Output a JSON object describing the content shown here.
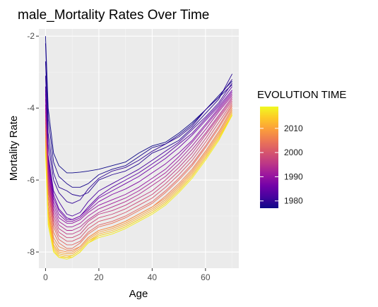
{
  "chart_data": {
    "type": "line",
    "title": "male_Mortality Rates Over Time",
    "xlabel": "Age",
    "ylabel": "Mortality Rate",
    "xlim": [
      -2.5,
      72.5
    ],
    "ylim": [
      -8.45,
      -1.8
    ],
    "x_ticks": [
      0,
      20,
      40,
      60
    ],
    "y_ticks": [
      -2,
      -4,
      -6,
      -8
    ],
    "grid": true,
    "legend": {
      "title": "EVOLUTION TIME",
      "position": "right",
      "type": "colorbar",
      "range": [
        1977,
        2019
      ],
      "ticks": [
        1980,
        1990,
        2000,
        2010
      ],
      "colors": [
        "#0d0887",
        "#46039f",
        "#7201a8",
        "#9c179e",
        "#bd3786",
        "#d8576b",
        "#ed7953",
        "#fb9f3a",
        "#fdca26",
        "#f0f921"
      ]
    },
    "panel_background": "#ebebeb",
    "x": [
      0,
      1,
      3,
      5,
      8,
      10,
      13,
      16,
      20,
      25,
      30,
      35,
      40,
      45,
      50,
      55,
      60,
      65,
      70
    ],
    "series": [
      {
        "year": 1977,
        "values": [
          -2.0,
          -4.0,
          -5.25,
          -5.6,
          -5.8,
          -5.8,
          -5.78,
          -5.75,
          -5.7,
          -5.6,
          -5.5,
          -5.25,
          -5.05,
          -4.95,
          -4.7,
          -4.4,
          -4.05,
          -3.65,
          -3.25
        ]
      },
      {
        "year": 1978,
        "values": [
          -2.2,
          -4.3,
          -5.5,
          -5.9,
          -6.1,
          -6.2,
          -6.2,
          -6.1,
          -5.85,
          -5.7,
          -5.6,
          -5.35,
          -5.1,
          -5.0,
          -4.75,
          -4.45,
          -4.05,
          -3.7,
          -3.35
        ]
      },
      {
        "year": 1979,
        "values": [
          -2.7,
          -4.7,
          -5.8,
          -6.2,
          -6.3,
          -6.4,
          -6.45,
          -6.35,
          -6.0,
          -5.85,
          -5.75,
          -5.55,
          -5.25,
          -5.1,
          -4.9,
          -4.55,
          -4.15,
          -3.75,
          -3.05
        ]
      },
      {
        "year": 1980,
        "values": [
          -3.1,
          -5.0,
          -6.0,
          -6.35,
          -6.6,
          -6.65,
          -6.55,
          -6.25,
          -5.95,
          -5.75,
          -5.65,
          -5.45,
          -5.2,
          -5.0,
          -4.8,
          -4.5,
          -4.05,
          -3.7,
          -3.2
        ]
      },
      {
        "year": 1982,
        "values": [
          -3.4,
          -5.3,
          -6.3,
          -6.6,
          -6.95,
          -7.0,
          -6.9,
          -6.6,
          -6.3,
          -6.1,
          -5.9,
          -5.7,
          -5.45,
          -5.2,
          -4.95,
          -4.6,
          -4.25,
          -3.85,
          -3.3
        ]
      },
      {
        "year": 1984,
        "values": [
          -3.5,
          -5.4,
          -6.4,
          -6.8,
          -7.05,
          -7.1,
          -7.0,
          -6.75,
          -6.45,
          -6.2,
          -6.0,
          -5.8,
          -5.55,
          -5.3,
          -5.0,
          -4.7,
          -4.3,
          -3.9,
          -3.4
        ]
      },
      {
        "year": 1986,
        "values": [
          -3.6,
          -5.5,
          -6.5,
          -6.85,
          -7.1,
          -7.1,
          -7.0,
          -6.8,
          -6.5,
          -6.3,
          -6.1,
          -5.9,
          -5.65,
          -5.4,
          -5.1,
          -4.75,
          -4.35,
          -3.95,
          -3.5
        ]
      },
      {
        "year": 1988,
        "values": [
          -3.75,
          -5.6,
          -6.6,
          -6.95,
          -7.15,
          -7.15,
          -7.05,
          -6.85,
          -6.6,
          -6.4,
          -6.25,
          -6.05,
          -5.8,
          -5.55,
          -5.25,
          -4.9,
          -4.45,
          -4.0,
          -3.55
        ]
      },
      {
        "year": 1990,
        "values": [
          -3.9,
          -5.7,
          -6.7,
          -7.05,
          -7.2,
          -7.2,
          -7.1,
          -6.9,
          -6.7,
          -6.55,
          -6.4,
          -6.2,
          -5.95,
          -5.7,
          -5.35,
          -4.95,
          -4.5,
          -4.05,
          -3.6
        ]
      },
      {
        "year": 1992,
        "values": [
          -4.0,
          -5.8,
          -6.8,
          -7.15,
          -7.3,
          -7.3,
          -7.2,
          -7.0,
          -6.8,
          -6.65,
          -6.5,
          -6.3,
          -6.05,
          -5.8,
          -5.45,
          -5.05,
          -4.6,
          -4.1,
          -3.65
        ]
      },
      {
        "year": 1994,
        "values": [
          -4.1,
          -5.9,
          -6.9,
          -7.25,
          -7.4,
          -7.4,
          -7.3,
          -7.1,
          -6.9,
          -6.75,
          -6.6,
          -6.4,
          -6.15,
          -5.9,
          -5.55,
          -5.15,
          -4.7,
          -4.2,
          -3.7
        ]
      },
      {
        "year": 1996,
        "values": [
          -4.2,
          -6.0,
          -7.0,
          -7.35,
          -7.5,
          -7.5,
          -7.4,
          -7.15,
          -6.95,
          -6.85,
          -6.7,
          -6.5,
          -6.3,
          -6.0,
          -5.65,
          -5.25,
          -4.75,
          -4.25,
          -3.75
        ]
      },
      {
        "year": 1998,
        "values": [
          -4.3,
          -6.1,
          -7.1,
          -7.45,
          -7.6,
          -7.6,
          -7.5,
          -7.25,
          -7.05,
          -6.95,
          -6.8,
          -6.6,
          -6.4,
          -6.1,
          -5.75,
          -5.35,
          -4.85,
          -4.3,
          -3.8
        ]
      },
      {
        "year": 2000,
        "values": [
          -4.4,
          -6.2,
          -7.2,
          -7.55,
          -7.7,
          -7.7,
          -7.6,
          -7.35,
          -7.15,
          -7.05,
          -6.9,
          -6.7,
          -6.5,
          -6.2,
          -5.85,
          -5.45,
          -4.95,
          -4.4,
          -3.85
        ]
      },
      {
        "year": 2002,
        "values": [
          -4.5,
          -6.3,
          -7.3,
          -7.65,
          -7.8,
          -7.8,
          -7.7,
          -7.45,
          -7.25,
          -7.15,
          -7.0,
          -6.8,
          -6.6,
          -6.3,
          -5.95,
          -5.55,
          -5.05,
          -4.5,
          -3.9
        ]
      },
      {
        "year": 2004,
        "values": [
          -4.6,
          -6.45,
          -7.45,
          -7.75,
          -7.9,
          -7.9,
          -7.75,
          -7.5,
          -7.3,
          -7.2,
          -7.05,
          -6.85,
          -6.65,
          -6.35,
          -6.0,
          -5.6,
          -5.1,
          -4.55,
          -3.95
        ]
      },
      {
        "year": 2006,
        "values": [
          -4.7,
          -6.6,
          -7.6,
          -7.85,
          -7.95,
          -7.95,
          -7.85,
          -7.6,
          -7.4,
          -7.3,
          -7.15,
          -6.95,
          -6.75,
          -6.45,
          -6.1,
          -5.7,
          -5.2,
          -4.65,
          -4.0
        ]
      },
      {
        "year": 2008,
        "values": [
          -4.8,
          -6.75,
          -7.7,
          -7.95,
          -8.0,
          -8.0,
          -7.85,
          -7.6,
          -7.4,
          -7.3,
          -7.15,
          -6.95,
          -6.75,
          -6.5,
          -6.15,
          -5.75,
          -5.25,
          -4.7,
          -4.05
        ]
      },
      {
        "year": 2010,
        "values": [
          -4.9,
          -6.85,
          -7.8,
          -8.0,
          -8.05,
          -8.05,
          -7.9,
          -7.65,
          -7.45,
          -7.35,
          -7.2,
          -7.0,
          -6.8,
          -6.55,
          -6.2,
          -5.8,
          -5.3,
          -4.75,
          -4.1
        ]
      },
      {
        "year": 2012,
        "values": [
          -5.0,
          -6.95,
          -7.85,
          -8.05,
          -8.1,
          -8.1,
          -7.95,
          -7.7,
          -7.5,
          -7.4,
          -7.25,
          -7.05,
          -6.85,
          -6.6,
          -6.25,
          -5.85,
          -5.35,
          -4.8,
          -4.15
        ]
      },
      {
        "year": 2014,
        "values": [
          -5.1,
          -7.05,
          -7.9,
          -8.1,
          -8.15,
          -8.15,
          -8.0,
          -7.75,
          -7.55,
          -7.45,
          -7.3,
          -7.1,
          -6.9,
          -6.65,
          -6.3,
          -5.9,
          -5.4,
          -4.85,
          -4.2
        ]
      },
      {
        "year": 2016,
        "values": [
          -5.2,
          -7.15,
          -7.95,
          -8.15,
          -8.15,
          -8.1,
          -7.95,
          -7.7,
          -7.55,
          -7.45,
          -7.3,
          -7.1,
          -6.9,
          -6.65,
          -6.3,
          -5.9,
          -5.4,
          -4.85,
          -4.15
        ]
      },
      {
        "year": 2018,
        "values": [
          -5.3,
          -7.25,
          -8.0,
          -8.15,
          -8.2,
          -8.15,
          -8.0,
          -7.75,
          -7.6,
          -7.5,
          -7.35,
          -7.15,
          -6.95,
          -6.7,
          -6.35,
          -5.95,
          -5.45,
          -4.9,
          -4.2
        ]
      }
    ]
  }
}
